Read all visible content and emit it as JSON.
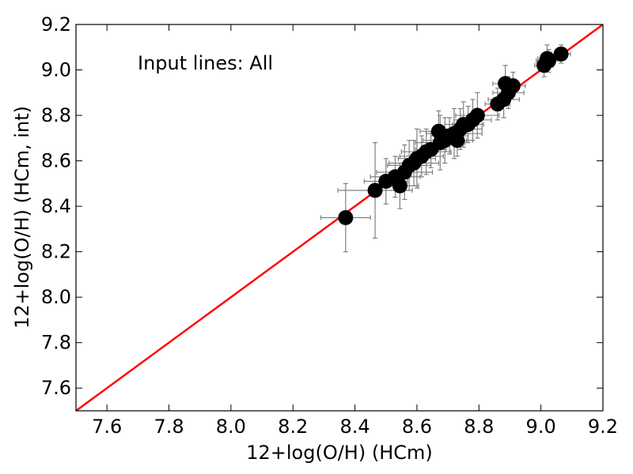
{
  "chart_data": {
    "type": "scatter",
    "xlabel": "12+log(O/H) (HCm)",
    "ylabel": "12+log(O/H) (HCm, int)",
    "annotation": "Input lines: All",
    "xlim": [
      7.5,
      9.2
    ],
    "ylim": [
      7.5,
      9.2
    ],
    "x_ticks": [
      7.6,
      7.8,
      8.0,
      8.2,
      8.4,
      8.6,
      8.8,
      9.0,
      9.2
    ],
    "y_ticks": [
      7.6,
      7.8,
      8.0,
      8.2,
      8.4,
      8.6,
      8.8,
      9.0,
      9.2
    ],
    "x_tick_labels": [
      "7.6",
      "7.8",
      "8.0",
      "8.2",
      "8.4",
      "8.6",
      "8.8",
      "9.0",
      "9.2"
    ],
    "y_tick_labels": [
      "7.6",
      "7.8",
      "8.0",
      "8.2",
      "8.4",
      "8.6",
      "8.8",
      "9.0",
      "9.2"
    ],
    "grid": false,
    "reference_line": {
      "type": "identity",
      "color": "#ff0000",
      "x": [
        7.5,
        9.2
      ],
      "y": [
        7.5,
        9.2
      ]
    },
    "marker_color": "#000000",
    "errorbar_color": "#808080",
    "points": [
      {
        "x": 8.37,
        "y": 8.35,
        "xerr": 0.08,
        "yerr": 0.15
      },
      {
        "x": 8.465,
        "y": 8.47,
        "xerr": 0.12,
        "yerr": 0.21
      },
      {
        "x": 8.5,
        "y": 8.51,
        "xerr": 0.07,
        "yerr": 0.1
      },
      {
        "x": 8.53,
        "y": 8.53,
        "xerr": 0.08,
        "yerr": 0.09
      },
      {
        "x": 8.545,
        "y": 8.49,
        "xerr": 0.06,
        "yerr": 0.1
      },
      {
        "x": 8.56,
        "y": 8.55,
        "xerr": 0.09,
        "yerr": 0.12
      },
      {
        "x": 8.575,
        "y": 8.58,
        "xerr": 0.07,
        "yerr": 0.11
      },
      {
        "x": 8.59,
        "y": 8.59,
        "xerr": 0.08,
        "yerr": 0.1
      },
      {
        "x": 8.6,
        "y": 8.61,
        "xerr": 0.06,
        "yerr": 0.13
      },
      {
        "x": 8.615,
        "y": 8.62,
        "xerr": 0.07,
        "yerr": 0.09
      },
      {
        "x": 8.63,
        "y": 8.64,
        "xerr": 0.08,
        "yerr": 0.1
      },
      {
        "x": 8.645,
        "y": 8.65,
        "xerr": 0.05,
        "yerr": 0.08
      },
      {
        "x": 8.67,
        "y": 8.73,
        "xerr": 0.06,
        "yerr": 0.09
      },
      {
        "x": 8.675,
        "y": 8.68,
        "xerr": 0.08,
        "yerr": 0.12
      },
      {
        "x": 8.69,
        "y": 8.69,
        "xerr": 0.07,
        "yerr": 0.1
      },
      {
        "x": 8.705,
        "y": 8.71,
        "xerr": 0.06,
        "yerr": 0.08
      },
      {
        "x": 8.72,
        "y": 8.72,
        "xerr": 0.09,
        "yerr": 0.11
      },
      {
        "x": 8.73,
        "y": 8.69,
        "xerr": 0.05,
        "yerr": 0.07
      },
      {
        "x": 8.74,
        "y": 8.74,
        "xerr": 0.07,
        "yerr": 0.09
      },
      {
        "x": 8.75,
        "y": 8.76,
        "xerr": 0.06,
        "yerr": 0.1
      },
      {
        "x": 8.765,
        "y": 8.76,
        "xerr": 0.05,
        "yerr": 0.08
      },
      {
        "x": 8.78,
        "y": 8.78,
        "xerr": 0.06,
        "yerr": 0.09
      },
      {
        "x": 8.795,
        "y": 8.8,
        "xerr": 0.07,
        "yerr": 0.1
      },
      {
        "x": 8.86,
        "y": 8.85,
        "xerr": 0.04,
        "yerr": 0.07
      },
      {
        "x": 8.88,
        "y": 8.87,
        "xerr": 0.05,
        "yerr": 0.08
      },
      {
        "x": 8.885,
        "y": 8.94,
        "xerr": 0.04,
        "yerr": 0.08
      },
      {
        "x": 8.895,
        "y": 8.9,
        "xerr": 0.05,
        "yerr": 0.07
      },
      {
        "x": 8.91,
        "y": 8.93,
        "xerr": 0.04,
        "yerr": 0.06
      },
      {
        "x": 9.01,
        "y": 9.02,
        "xerr": 0.03,
        "yerr": 0.05
      },
      {
        "x": 9.02,
        "y": 9.05,
        "xerr": 0.03,
        "yerr": 0.06
      },
      {
        "x": 9.025,
        "y": 9.04,
        "xerr": 0.04,
        "yerr": 0.05
      },
      {
        "x": 9.065,
        "y": 9.07,
        "xerr": 0.03,
        "yerr": 0.04
      }
    ]
  }
}
